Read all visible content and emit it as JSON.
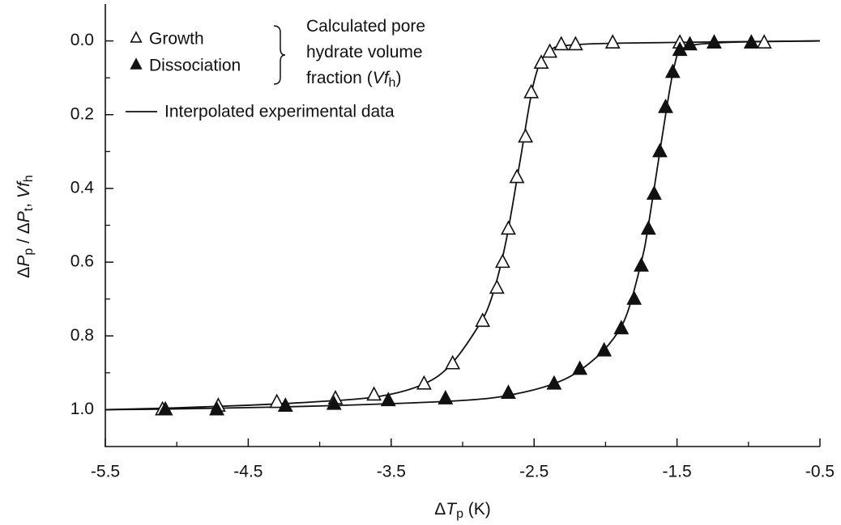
{
  "chart_data": {
    "type": "scatter",
    "xlabel": [
      {
        "text": "Δ"
      },
      {
        "text": "T",
        "style": "italic"
      },
      {
        "text": "p",
        "style": "sub"
      },
      {
        "text": " (K)"
      }
    ],
    "ylabel": [
      {
        "text": "Δ"
      },
      {
        "text": "P",
        "style": "italic"
      },
      {
        "text": "p",
        "style": "sub"
      },
      {
        "text": " / Δ"
      },
      {
        "text": "P",
        "style": "italic"
      },
      {
        "text": "t",
        "style": "sub"
      },
      {
        "text": ", "
      },
      {
        "text": "Vf",
        "style": "italic"
      },
      {
        "text": "h",
        "style": "sub"
      }
    ],
    "xlim": [
      -5.5,
      -0.5
    ],
    "xticks": [
      -5.5,
      -4.5,
      -3.5,
      -2.5,
      -1.5,
      -0.5
    ],
    "x_minor_ticks": [
      -5,
      -4,
      -3,
      -2,
      -1
    ],
    "ylim": [
      -0.1,
      1.1
    ],
    "y_inverted": true,
    "yticks": [
      {
        "value": 0,
        "label": "0.0"
      },
      0.2,
      0.4,
      0.6,
      0.8,
      {
        "value": 1,
        "label": "1.0"
      }
    ],
    "y_minor_ticks": [
      0.1,
      0.3,
      0.5,
      0.7,
      0.9
    ],
    "series": [
      {
        "name": "Growth",
        "marker": "open-triangle",
        "color": "#111111",
        "x": [
          -5.1,
          -4.71,
          -4.3,
          -3.89,
          -3.62,
          -3.27,
          -3.07,
          -2.86,
          -2.76,
          -2.72,
          -2.68,
          -2.62,
          -2.56,
          -2.52,
          -2.45,
          -2.39,
          -2.31,
          -2.21,
          -1.95,
          -1.48,
          -0.89
        ],
        "values": [
          1.0,
          0.99,
          0.98,
          0.97,
          0.96,
          0.93,
          0.875,
          0.76,
          0.67,
          0.6,
          0.51,
          0.37,
          0.26,
          0.14,
          0.06,
          0.03,
          0.01,
          0.01,
          0.005,
          0.005,
          0.005
        ]
      },
      {
        "name": "Dissociation",
        "marker": "filled-triangle",
        "color": "#111111",
        "x": [
          -5.08,
          -4.72,
          -4.24,
          -3.9,
          -3.52,
          -3.12,
          -2.68,
          -2.36,
          -2.18,
          -2.01,
          -1.89,
          -1.8,
          -1.75,
          -1.7,
          -1.66,
          -1.62,
          -1.58,
          -1.53,
          -1.48,
          -1.41,
          -1.24,
          -0.98
        ],
        "values": [
          1.0,
          1.0,
          0.99,
          0.985,
          0.975,
          0.97,
          0.955,
          0.93,
          0.89,
          0.84,
          0.78,
          0.7,
          0.61,
          0.51,
          0.415,
          0.3,
          0.18,
          0.085,
          0.025,
          0.01,
          0.005,
          0.005
        ]
      }
    ],
    "fit_lines": {
      "name": "Interpolated experimental data",
      "color": "#111111",
      "curves": [
        {
          "x": [
            -5.5,
            -5.0,
            -4.5,
            -4.0,
            -3.6,
            -3.3,
            -3.1,
            -2.9,
            -2.8,
            -2.7,
            -2.6,
            -2.5,
            -2.4,
            -2.2,
            -1.5,
            -0.5
          ],
          "values": [
            1.0,
            0.995,
            0.988,
            0.978,
            0.965,
            0.935,
            0.885,
            0.78,
            0.7,
            0.55,
            0.33,
            0.11,
            0.03,
            0.01,
            0.004,
            0.0
          ]
        },
        {
          "x": [
            -5.5,
            -5.0,
            -4.0,
            -3.0,
            -2.6,
            -2.3,
            -2.1,
            -1.95,
            -1.85,
            -1.75,
            -1.7,
            -1.6,
            -1.52,
            -1.45,
            -1.2,
            -0.5
          ],
          "values": [
            1.0,
            0.998,
            0.99,
            0.975,
            0.955,
            0.92,
            0.87,
            0.81,
            0.74,
            0.6,
            0.5,
            0.25,
            0.07,
            0.02,
            0.005,
            0.0
          ]
        }
      ]
    },
    "annotation": [
      [
        {
          "text": "Calculated pore"
        }
      ],
      [
        {
          "text": "hydrate volume"
        }
      ],
      [
        {
          "text": "fraction ("
        },
        {
          "text": "Vf",
          "style": "italic"
        },
        {
          "text": "h",
          "style": "sub"
        },
        {
          "text": ")"
        }
      ]
    ]
  }
}
